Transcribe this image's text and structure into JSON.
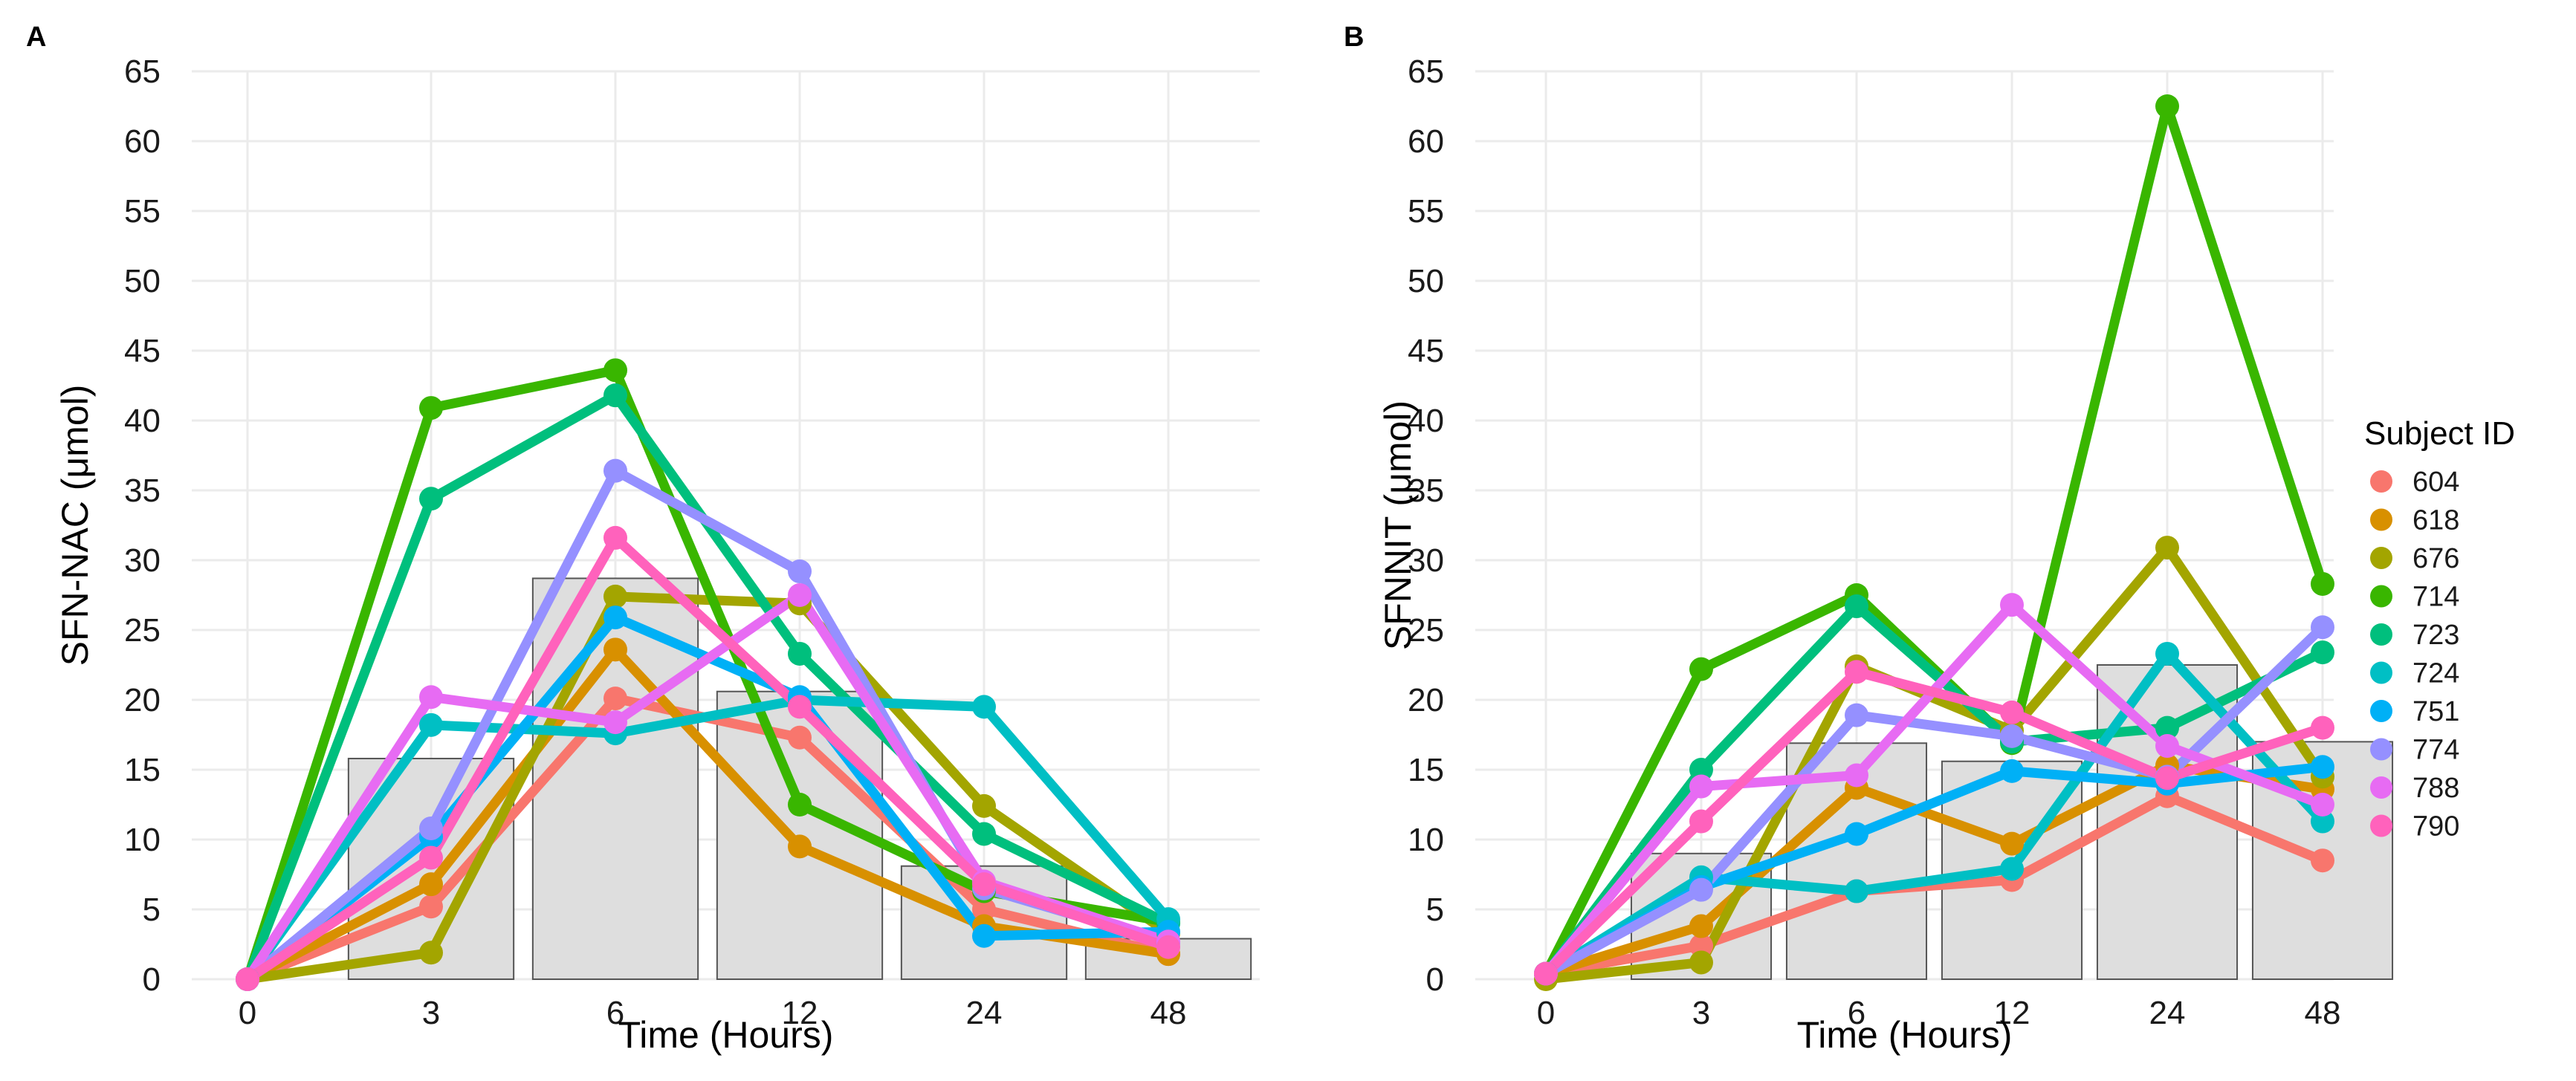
{
  "legend": {
    "title": "Subject ID",
    "subjects": [
      "604",
      "618",
      "676",
      "714",
      "723",
      "724",
      "751",
      "774",
      "788",
      "790"
    ],
    "colors": [
      "#F8766D",
      "#D89000",
      "#A3A500",
      "#39B600",
      "#00BF7D",
      "#00BFC4",
      "#00B0F6",
      "#9590FF",
      "#E76BF3",
      "#FF62BC"
    ]
  },
  "styles": {
    "bar_fill": "#dedede",
    "bar_stroke": "#555555",
    "grid_color": "#ebebeb",
    "text_color": "#1a1a1a"
  },
  "chart_data": [
    {
      "type": "line",
      "panel_label": "A",
      "title": "",
      "xlabel": "Time (Hours)",
      "ylabel": "SFN-NAC (μmol)",
      "categories": [
        "0",
        "3",
        "6",
        "12",
        "24",
        "48"
      ],
      "ylim": [
        0,
        65
      ],
      "yticks": [
        0,
        5,
        10,
        15,
        20,
        25,
        30,
        35,
        40,
        45,
        50,
        55,
        60,
        65
      ],
      "bars": {
        "name": "mean",
        "values": [
          0,
          15.8,
          28.7,
          20.6,
          8.1,
          2.9
        ]
      },
      "series": [
        {
          "name": "604",
          "values": [
            0,
            5.2,
            20.1,
            17.3,
            5.0,
            1.8
          ]
        },
        {
          "name": "618",
          "values": [
            0,
            6.8,
            23.6,
            9.5,
            3.8,
            1.8
          ]
        },
        {
          "name": "676",
          "values": [
            0,
            1.9,
            27.4,
            26.9,
            12.4,
            3.3
          ]
        },
        {
          "name": "714",
          "values": [
            0,
            40.9,
            43.6,
            12.5,
            6.3,
            4.1
          ]
        },
        {
          "name": "723",
          "values": [
            0,
            34.4,
            41.8,
            23.3,
            10.4,
            4.0
          ]
        },
        {
          "name": "724",
          "values": [
            0,
            18.2,
            17.6,
            20.0,
            19.5,
            4.3
          ]
        },
        {
          "name": "751",
          "values": [
            0,
            10.2,
            25.9,
            20.2,
            3.1,
            3.4
          ]
        },
        {
          "name": "774",
          "values": [
            0,
            10.8,
            36.4,
            29.2,
            6.5,
            2.6
          ]
        },
        {
          "name": "788",
          "values": [
            0,
            20.2,
            18.4,
            27.5,
            7.0,
            2.7
          ]
        },
        {
          "name": "790",
          "values": [
            0,
            8.7,
            31.6,
            19.5,
            6.8,
            2.3
          ]
        }
      ]
    },
    {
      "type": "line",
      "panel_label": "B",
      "title": "",
      "xlabel": "Time (Hours)",
      "ylabel": "SFNNIT (μmol)",
      "categories": [
        "0",
        "3",
        "6",
        "12",
        "24",
        "48"
      ],
      "ylim": [
        0,
        65
      ],
      "yticks": [
        0,
        5,
        10,
        15,
        20,
        25,
        30,
        35,
        40,
        45,
        50,
        55,
        60,
        65
      ],
      "bars": {
        "name": "mean",
        "values": [
          0,
          9.0,
          16.9,
          15.6,
          22.5,
          17.0
        ]
      },
      "series": [
        {
          "name": "604",
          "values": [
            0.4,
            2.4,
            6.3,
            7.1,
            13.1,
            8.5
          ]
        },
        {
          "name": "618",
          "values": [
            0.4,
            3.8,
            13.7,
            9.7,
            15.3,
            13.6
          ]
        },
        {
          "name": "676",
          "values": [
            0,
            1.2,
            22.4,
            17.8,
            30.9,
            14.5
          ]
        },
        {
          "name": "714",
          "values": [
            0.4,
            22.2,
            27.5,
            16.9,
            62.5,
            28.3
          ]
        },
        {
          "name": "723",
          "values": [
            0.4,
            15.0,
            26.7,
            17.0,
            18.0,
            23.4
          ]
        },
        {
          "name": "724",
          "values": [
            0.4,
            7.3,
            6.3,
            7.9,
            23.3,
            11.3
          ]
        },
        {
          "name": "751",
          "values": [
            0.4,
            6.6,
            10.4,
            14.9,
            14.0,
            15.2
          ]
        },
        {
          "name": "774",
          "values": [
            0.4,
            6.4,
            18.9,
            17.4,
            14.5,
            25.2
          ]
        },
        {
          "name": "788",
          "values": [
            0.4,
            13.8,
            14.6,
            26.8,
            16.7,
            12.5
          ]
        },
        {
          "name": "790",
          "values": [
            0.4,
            11.3,
            22.0,
            19.1,
            14.4,
            18.0
          ]
        }
      ]
    }
  ]
}
